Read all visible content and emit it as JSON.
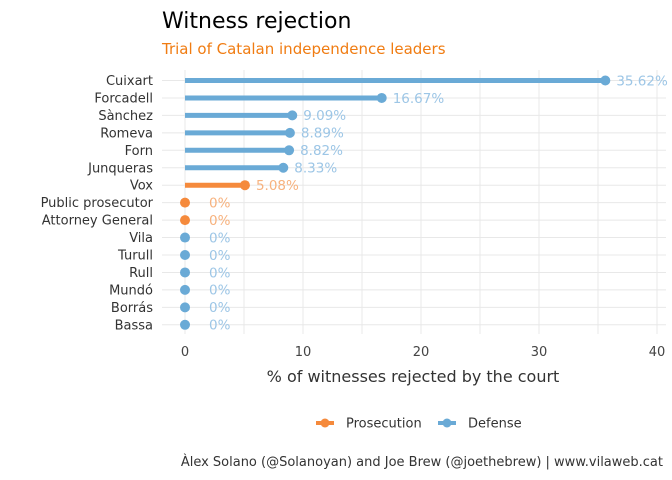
{
  "chart_data": {
    "type": "bar",
    "orientation": "horizontal",
    "style": "lollipop",
    "title": "Witness rejection",
    "subtitle": "Trial of Catalan independence leaders",
    "xlabel": "% of witnesses rejected by the court",
    "xlim": [
      0,
      40
    ],
    "xticks": [
      0,
      10,
      20,
      30,
      40
    ],
    "grid": true,
    "legend_position": "bottom",
    "caption": "Àlex Solano (@Solanoyan) and Joe Brew (@joethebrew) | www.vilaweb.cat",
    "colors": {
      "Prosecution": "#f58a3c",
      "Defense": "#6aaad6"
    },
    "label_colors": {
      "Prosecution": "#f7b27e",
      "Defense": "#9dc6e6"
    },
    "legend": [
      "Prosecution",
      "Defense"
    ],
    "points": [
      {
        "name": "Cuixart",
        "value": 35.62,
        "label": "35.62%",
        "group": "Defense"
      },
      {
        "name": "Forcadell",
        "value": 16.67,
        "label": "16.67%",
        "group": "Defense"
      },
      {
        "name": "Sànchez",
        "value": 9.09,
        "label": "9.09%",
        "group": "Defense"
      },
      {
        "name": "Romeva",
        "value": 8.89,
        "label": "8.89%",
        "group": "Defense"
      },
      {
        "name": "Forn",
        "value": 8.82,
        "label": "8.82%",
        "group": "Defense"
      },
      {
        "name": "Junqueras",
        "value": 8.33,
        "label": "8.33%",
        "group": "Defense"
      },
      {
        "name": "Vox",
        "value": 5.08,
        "label": "5.08%",
        "group": "Prosecution"
      },
      {
        "name": "Public prosecutor",
        "value": 0,
        "label": "0%",
        "group": "Prosecution"
      },
      {
        "name": "Attorney General",
        "value": 0,
        "label": "0%",
        "group": "Prosecution"
      },
      {
        "name": "Vila",
        "value": 0,
        "label": "0%",
        "group": "Defense"
      },
      {
        "name": "Turull",
        "value": 0,
        "label": "0%",
        "group": "Defense"
      },
      {
        "name": "Rull",
        "value": 0,
        "label": "0%",
        "group": "Defense"
      },
      {
        "name": "Mundó",
        "value": 0,
        "label": "0%",
        "group": "Defense"
      },
      {
        "name": "Borrás",
        "value": 0,
        "label": "0%",
        "group": "Defense"
      },
      {
        "name": "Bassa",
        "value": 0,
        "label": "0%",
        "group": "Defense"
      }
    ]
  }
}
